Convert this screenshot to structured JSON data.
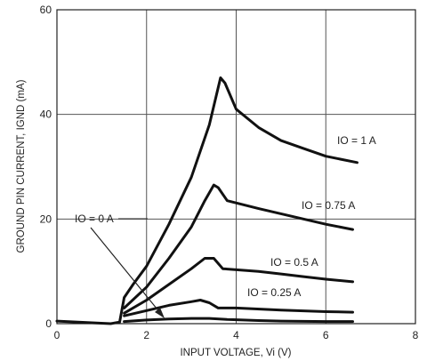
{
  "chart_data": {
    "type": "line",
    "xlabel": "INPUT VOLTAGE, Vi (V)",
    "ylabel": "GROUND PIN CURRENT, IGND (mA)",
    "xlim": [
      0,
      8
    ],
    "ylim": [
      0,
      60
    ],
    "x_ticks": [
      "0",
      "2",
      "4",
      "6",
      "8"
    ],
    "y_ticks": [
      "0",
      "20",
      "40",
      "60"
    ],
    "grid": true,
    "series": [
      {
        "name": "IO = 1 A",
        "points": [
          [
            0,
            0.5
          ],
          [
            1.2,
            0
          ],
          [
            1.4,
            0.3
          ],
          [
            1.5,
            5
          ],
          [
            1.7,
            7.5
          ],
          [
            2,
            11
          ],
          [
            2.5,
            19
          ],
          [
            3,
            28
          ],
          [
            3.4,
            38
          ],
          [
            3.65,
            47
          ],
          [
            3.75,
            46
          ],
          [
            4,
            41
          ],
          [
            4.5,
            37.5
          ],
          [
            5,
            35
          ],
          [
            5.5,
            33.5
          ],
          [
            6,
            32
          ],
          [
            6.7,
            30.8
          ]
        ]
      },
      {
        "name": "IO = 0.75 A",
        "points": [
          [
            1.5,
            3
          ],
          [
            2,
            7
          ],
          [
            2.5,
            12.5
          ],
          [
            3,
            18.5
          ],
          [
            3.3,
            23.5
          ],
          [
            3.5,
            26.5
          ],
          [
            3.6,
            26
          ],
          [
            3.8,
            23.5
          ],
          [
            4.5,
            22
          ],
          [
            5,
            21
          ],
          [
            5.5,
            20
          ],
          [
            6,
            19
          ],
          [
            6.6,
            18
          ]
        ]
      },
      {
        "name": "IO = 0.5 A",
        "points": [
          [
            1.5,
            2
          ],
          [
            2,
            4.5
          ],
          [
            2.5,
            7.5
          ],
          [
            3,
            10.5
          ],
          [
            3.3,
            12.5
          ],
          [
            3.5,
            12.5
          ],
          [
            3.7,
            10.5
          ],
          [
            4.5,
            10
          ],
          [
            5,
            9.5
          ],
          [
            5.5,
            9
          ],
          [
            6,
            8.5
          ],
          [
            6.6,
            8
          ]
        ]
      },
      {
        "name": "IO = 0.25 A",
        "points": [
          [
            1.5,
            1.5
          ],
          [
            2,
            2.5
          ],
          [
            2.5,
            3.5
          ],
          [
            3,
            4.2
          ],
          [
            3.2,
            4.5
          ],
          [
            3.4,
            4
          ],
          [
            3.6,
            3
          ],
          [
            4,
            3
          ],
          [
            5,
            2.6
          ],
          [
            6,
            2.3
          ],
          [
            6.6,
            2.2
          ]
        ]
      },
      {
        "name": "IO = 0 A",
        "points": [
          [
            1.5,
            0.4
          ],
          [
            2,
            0.7
          ],
          [
            2.5,
            0.9
          ],
          [
            3,
            1
          ],
          [
            3.4,
            1
          ],
          [
            3.8,
            0.8
          ],
          [
            4.5,
            0.6
          ],
          [
            5,
            0.5
          ],
          [
            6,
            0.4
          ],
          [
            6.6,
            0.4
          ]
        ]
      }
    ]
  },
  "labels": {
    "io_1a": "IO = 1 A",
    "io_075a": "IO = 0.75 A",
    "io_05a": "IO = 0.5 A",
    "io_025a": "IO = 0.25 A",
    "io_0a": "IO = 0 A"
  },
  "colors": {
    "curve": "#111111",
    "grid": "#555555"
  }
}
